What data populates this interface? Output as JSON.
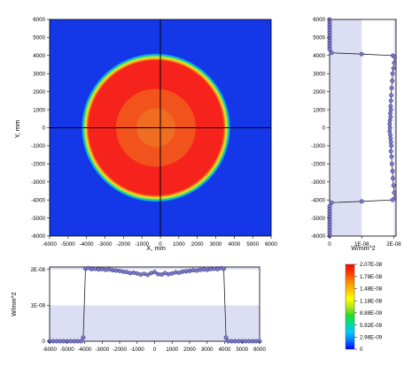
{
  "chart_data": [
    {
      "type": "heatmap",
      "xlabel": "X, mm",
      "ylabel": "Y, mm",
      "xlim": [
        -6000,
        6000
      ],
      "ylim": [
        -6000,
        6000
      ],
      "xticks": [
        "-6000",
        "-5000",
        "-4000",
        "-3000",
        "-2000",
        "-1000",
        "0",
        "1000",
        "2000",
        "3000",
        "4000",
        "5000",
        "6000"
      ],
      "yticks": [
        "6000",
        "5000",
        "4000",
        "3000",
        "2000",
        "1000",
        "0",
        "-1000",
        "-2000",
        "-3000",
        "-4000",
        "-5000",
        "-6000"
      ],
      "beam_radius": 4000,
      "crosshair": {
        "x": 0,
        "y": 0
      },
      "colors": {
        "background": "#1438e8",
        "plateau": "#f5231b",
        "center": "#f15c1d"
      }
    },
    {
      "type": "line",
      "orientation": "vertical-profile",
      "xlabel": "W/mm^2",
      "xticks": [
        "0",
        "1E-08",
        "2E-08"
      ],
      "xlim": [
        0,
        2.07e-08
      ],
      "ylim": [
        -6000,
        6000
      ],
      "points": [
        [
          0,
          6000
        ],
        [
          0,
          5850
        ],
        [
          0,
          5700
        ],
        [
          0,
          5550
        ],
        [
          0,
          5400
        ],
        [
          0,
          5250
        ],
        [
          0,
          5100
        ],
        [
          0,
          4950
        ],
        [
          0,
          4800
        ],
        [
          0,
          4650
        ],
        [
          0,
          4500
        ],
        [
          0,
          4350
        ],
        [
          6e-10,
          4150
        ],
        [
          1e-08,
          4080
        ],
        [
          1.97e-08,
          4000
        ],
        [
          2.03e-08,
          3900
        ],
        [
          2.01e-08,
          3600
        ],
        [
          1.99e-08,
          3300
        ],
        [
          1.96e-08,
          3000
        ],
        [
          1.95e-08,
          2600
        ],
        [
          1.93e-08,
          2200
        ],
        [
          1.92e-08,
          1800
        ],
        [
          1.91e-08,
          1500
        ],
        [
          1.9e-08,
          1200
        ],
        [
          1.91e-08,
          1000
        ],
        [
          1.89e-08,
          800
        ],
        [
          1.9e-08,
          600
        ],
        [
          1.88e-08,
          400
        ],
        [
          1.87e-08,
          200
        ],
        [
          1.88e-08,
          0
        ],
        [
          1.87e-08,
          -200
        ],
        [
          1.89e-08,
          -400
        ],
        [
          1.9e-08,
          -600
        ],
        [
          1.91e-08,
          -800
        ],
        [
          1.92e-08,
          -1000
        ],
        [
          1.91e-08,
          -1300
        ],
        [
          1.93e-08,
          -1600
        ],
        [
          1.94e-08,
          -2000
        ],
        [
          1.96e-08,
          -2400
        ],
        [
          1.97e-08,
          -2800
        ],
        [
          1.99e-08,
          -3200
        ],
        [
          2.01e-08,
          -3600
        ],
        [
          2.03e-08,
          -3900
        ],
        [
          1.96e-08,
          -4000
        ],
        [
          1e-08,
          -4080
        ],
        [
          6e-10,
          -4150
        ],
        [
          0,
          -4350
        ],
        [
          0,
          -4500
        ],
        [
          0,
          -4650
        ],
        [
          0,
          -4800
        ],
        [
          0,
          -4950
        ],
        [
          0,
          -5100
        ],
        [
          0,
          -5250
        ],
        [
          0,
          -5400
        ],
        [
          0,
          -5550
        ],
        [
          0,
          -5700
        ],
        [
          0,
          -5850
        ],
        [
          0,
          -6000
        ]
      ],
      "shading": [
        [
          0,
          1e-08
        ],
        [
          2e-08,
          2.07e-08
        ]
      ],
      "colors": {
        "shade": "#dcdef4",
        "marker": "#7b79c9",
        "line": "#222222"
      }
    },
    {
      "type": "line",
      "orientation": "horizontal-profile",
      "ylabel": "W/mm^2",
      "yticks": [
        "2E-08",
        "1E-08",
        "0"
      ],
      "xticks": [
        "-6000",
        "-5000",
        "-4000",
        "-3000",
        "-2000",
        "-1000",
        "0",
        "1000",
        "2000",
        "3000",
        "4000",
        "5000",
        "6000"
      ],
      "xlim": [
        -6000,
        6000
      ],
      "ylim": [
        0,
        2.07e-08
      ],
      "points": [
        [
          -6000,
          0
        ],
        [
          -5800,
          0
        ],
        [
          -5600,
          0
        ],
        [
          -5400,
          0
        ],
        [
          -5200,
          0
        ],
        [
          -5000,
          0
        ],
        [
          -4800,
          0
        ],
        [
          -4600,
          0
        ],
        [
          -4400,
          0
        ],
        [
          -4200,
          0
        ],
        [
          -4080,
          1e-09
        ],
        [
          -3950,
          2.02e-08
        ],
        [
          -3800,
          2.04e-08
        ],
        [
          -3600,
          2.01e-08
        ],
        [
          -3400,
          2.02e-08
        ],
        [
          -3200,
          2e-08
        ],
        [
          -3000,
          2.01e-08
        ],
        [
          -2800,
          1.99e-08
        ],
        [
          -2600,
          2e-08
        ],
        [
          -2400,
          1.98e-08
        ],
        [
          -2200,
          1.97e-08
        ],
        [
          -2000,
          1.96e-08
        ],
        [
          -1800,
          1.94e-08
        ],
        [
          -1600,
          1.93e-08
        ],
        [
          -1400,
          1.9e-08
        ],
        [
          -1200,
          1.91e-08
        ],
        [
          -1000,
          1.89e-08
        ],
        [
          -800,
          1.86e-08
        ],
        [
          -600,
          1.88e-08
        ],
        [
          -400,
          1.85e-08
        ],
        [
          -200,
          1.9e-08
        ],
        [
          0,
          1.93e-08
        ],
        [
          200,
          1.87e-08
        ],
        [
          400,
          1.86e-08
        ],
        [
          600,
          1.9e-08
        ],
        [
          800,
          1.87e-08
        ],
        [
          1000,
          1.89e-08
        ],
        [
          1200,
          1.92e-08
        ],
        [
          1400,
          1.91e-08
        ],
        [
          1600,
          1.94e-08
        ],
        [
          1800,
          1.95e-08
        ],
        [
          2000,
          1.96e-08
        ],
        [
          2200,
          1.98e-08
        ],
        [
          2400,
          1.97e-08
        ],
        [
          2600,
          1.99e-08
        ],
        [
          2800,
          2e-08
        ],
        [
          3000,
          1.99e-08
        ],
        [
          3200,
          2.01e-08
        ],
        [
          3400,
          2.02e-08
        ],
        [
          3600,
          2.01e-08
        ],
        [
          3800,
          2.04e-08
        ],
        [
          3950,
          2.02e-08
        ],
        [
          4080,
          1e-09
        ],
        [
          4200,
          0
        ],
        [
          4400,
          0
        ],
        [
          4600,
          0
        ],
        [
          4800,
          0
        ],
        [
          5000,
          0
        ],
        [
          5200,
          0
        ],
        [
          5400,
          0
        ],
        [
          5600,
          0
        ],
        [
          5800,
          0
        ],
        [
          6000,
          0
        ]
      ],
      "shading": [
        [
          0,
          1e-08
        ],
        [
          2e-08,
          2.07e-08
        ]
      ],
      "colors": {
        "shade": "#dcdef4",
        "marker": "#7b79c9",
        "line": "#222222"
      }
    },
    {
      "type": "colorbar",
      "labels": [
        "2.07E-08",
        "1.78E-08",
        "1.48E-08",
        "1.18E-08",
        "8.88E-09",
        "5.92E-09",
        "2.96E-09",
        "0"
      ],
      "colors": [
        "#ff0000",
        "#ff3c00",
        "#ff8800",
        "#ffc000",
        "#ffff00",
        "#b5e61d",
        "#22dd22",
        "#00dd99",
        "#00c8ff",
        "#0078ff",
        "#0000ff"
      ]
    }
  ]
}
